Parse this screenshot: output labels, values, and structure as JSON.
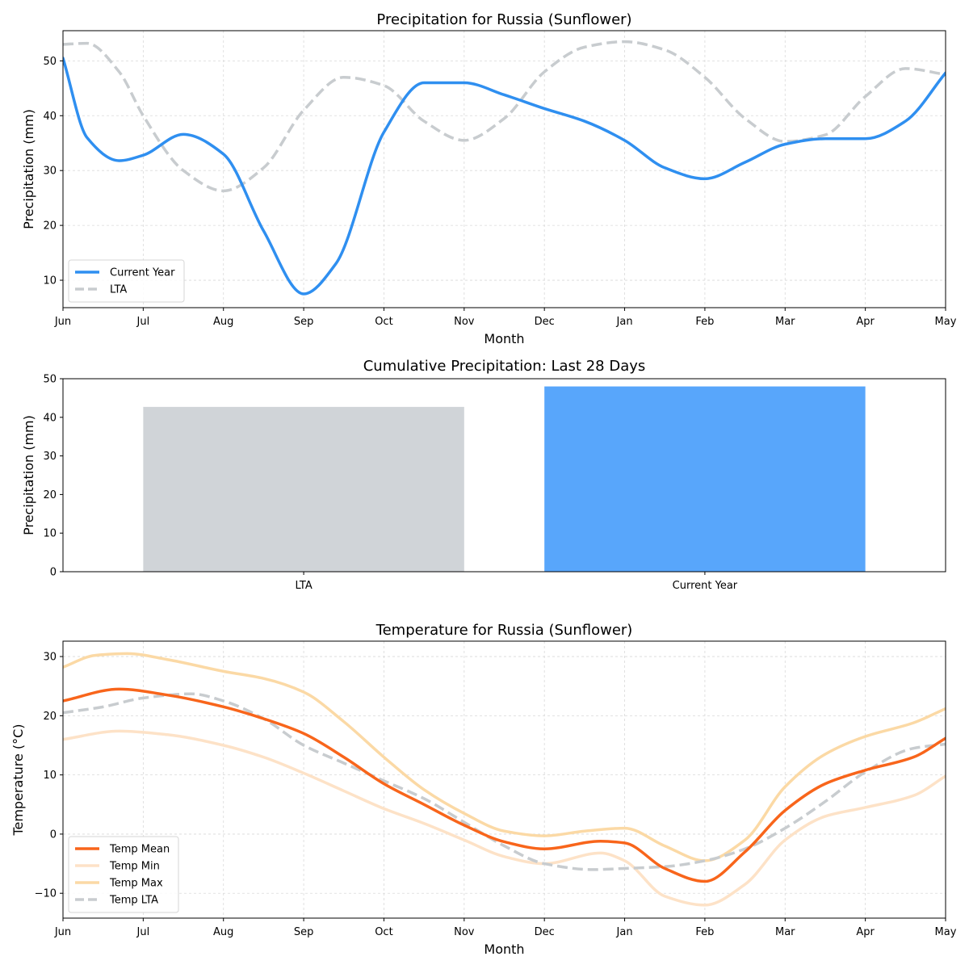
{
  "chart_data": [
    {
      "type": "line",
      "title": "Precipitation for Russia (Sunflower)",
      "xlabel": "Month",
      "ylabel": "Precipitation (mm)",
      "categories": [
        "Jun",
        "Jul",
        "Aug",
        "Sep",
        "Oct",
        "Nov",
        "Dec",
        "Jan",
        "Feb",
        "Mar",
        "Apr",
        "May"
      ],
      "ylim": [
        5,
        55.5
      ],
      "yticks": [
        10,
        20,
        30,
        40,
        50
      ],
      "grid": true,
      "legend": "lower-left",
      "series": [
        {
          "name": "Current Year",
          "color": "#2f8ff0",
          "style": "solid",
          "x": [
            0,
            0.3,
            0.7,
            1,
            1.5,
            2,
            2.5,
            3,
            3.4,
            4,
            4.5,
            5,
            5.5,
            6,
            6.5,
            7,
            7.5,
            8,
            8.5,
            9,
            9.5,
            10,
            10.5,
            11
          ],
          "y": [
            50.5,
            36,
            31.8,
            32.8,
            36.6,
            33,
            19,
            7.5,
            13,
            37,
            46,
            46,
            43.8,
            41.3,
            39,
            35.5,
            30.5,
            28.5,
            31.5,
            34.8,
            35.8,
            35.8,
            39,
            47.8
          ]
        },
        {
          "name": "LTA",
          "color": "#c8cccf",
          "style": "dashed",
          "x": [
            0,
            0.3,
            0.7,
            1,
            1.5,
            2,
            2.5,
            3,
            3.5,
            4,
            4.5,
            5,
            5.5,
            6,
            6.5,
            7,
            7.5,
            8,
            8.5,
            9,
            9.5,
            10,
            10.5,
            11
          ],
          "y": [
            53,
            53.2,
            48,
            40,
            30,
            26.3,
            30.5,
            41,
            47,
            45.5,
            39,
            35.5,
            39.5,
            48,
            52.5,
            53.5,
            52,
            47,
            39.5,
            35.3,
            36.5,
            43.5,
            48.6,
            47.5
          ]
        }
      ]
    },
    {
      "type": "bar",
      "title": "Cumulative Precipitation: Last 28 Days",
      "xlabel": "",
      "ylabel": "Precipitation (mm)",
      "categories": [
        "LTA",
        "Current Year"
      ],
      "values": [
        42.7,
        48.0
      ],
      "colors": [
        "#d0d4d8",
        "#58a6fb"
      ],
      "ylim": [
        0,
        50
      ],
      "yticks": [
        0,
        10,
        20,
        30,
        40,
        50
      ]
    },
    {
      "type": "line",
      "title": "Temperature for Russia (Sunflower)",
      "xlabel": "Month",
      "ylabel": "Temperature (°C)",
      "categories": [
        "Jun",
        "Jul",
        "Aug",
        "Sep",
        "Oct",
        "Nov",
        "Dec",
        "Jan",
        "Feb",
        "Mar",
        "Apr",
        "May"
      ],
      "ylim": [
        -14.2,
        32.6
      ],
      "yticks": [
        30,
        20,
        10,
        0,
        -10
      ],
      "ytick_labels": [
        "30",
        "20",
        "10",
        "0",
        "−10"
      ],
      "grid": true,
      "legend": "lower-left",
      "series": [
        {
          "name": "Temp Mean",
          "color": "#f8651b",
          "style": "solid",
          "x": [
            0,
            0.7,
            1.3,
            2,
            2.5,
            3,
            3.5,
            4,
            4.5,
            5,
            5.5,
            6,
            6.7,
            7,
            7.5,
            8,
            8.5,
            9,
            9.5,
            10,
            10.6,
            11
          ],
          "y": [
            22.5,
            24.5,
            23.5,
            21.5,
            19.5,
            17,
            13,
            8.5,
            5,
            1.5,
            -1.3,
            -2.5,
            -1.2,
            -1.5,
            -5.8,
            -8,
            -3,
            4,
            8.5,
            10.8,
            13,
            16.2
          ]
        },
        {
          "name": "Temp Min",
          "color": "#fde2c7",
          "style": "solid",
          "x": [
            0,
            0.7,
            1.3,
            2,
            2.5,
            3,
            3.5,
            4,
            4.5,
            5,
            5.5,
            6,
            6.7,
            7,
            7.5,
            8,
            8.5,
            9,
            9.5,
            10,
            10.6,
            11
          ],
          "y": [
            16,
            17.4,
            16.8,
            15,
            13,
            10.3,
            7.3,
            4.3,
            1.8,
            -1,
            -3.8,
            -5,
            -3.2,
            -4.5,
            -10.5,
            -12,
            -8.5,
            -1,
            3,
            4.5,
            6.5,
            9.8
          ]
        },
        {
          "name": "Temp Max",
          "color": "#fbd9a5",
          "style": "solid",
          "x": [
            0,
            0.4,
            0.8,
            1.3,
            2,
            2.5,
            3,
            3.5,
            4,
            4.5,
            5,
            5.5,
            6,
            6.5,
            7,
            7.5,
            8,
            8.5,
            9,
            9.5,
            10,
            10.6,
            11
          ],
          "y": [
            28.2,
            30.2,
            30.5,
            29.5,
            27.5,
            26.3,
            24,
            19,
            13,
            7.5,
            3.5,
            0.5,
            -0.3,
            0.5,
            1,
            -2,
            -4.5,
            -1,
            8,
            13.5,
            16.5,
            18.8,
            21.2
          ]
        },
        {
          "name": "Temp LTA",
          "color": "#c8cccf",
          "style": "dashed",
          "x": [
            0,
            0.5,
            1,
            1.6,
            2,
            2.5,
            3,
            3.5,
            4,
            4.5,
            5,
            5.5,
            6,
            6.6,
            7,
            7.5,
            8,
            8.5,
            9,
            9.5,
            10,
            10.6,
            11
          ],
          "y": [
            20.5,
            21.5,
            23,
            23.7,
            22.5,
            19.5,
            15,
            12,
            9,
            6,
            2,
            -2,
            -5,
            -6,
            -5.8,
            -5.5,
            -4.5,
            -2.5,
            1,
            5.5,
            10.5,
            14.5,
            15.2
          ]
        }
      ]
    }
  ]
}
